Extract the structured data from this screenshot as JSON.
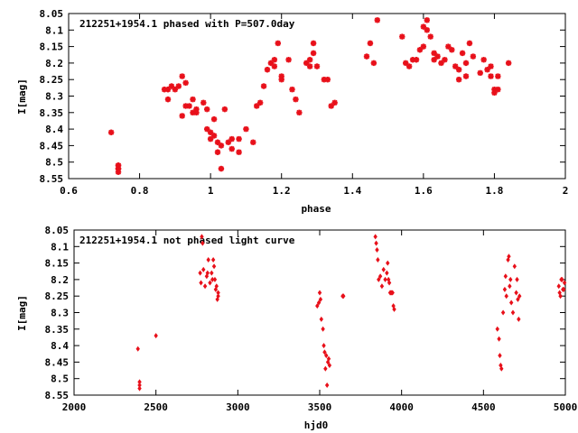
{
  "chart_data": [
    {
      "type": "scatter",
      "title": "212251+1954.1 phased with P=507.0day",
      "xlabel": "phase",
      "ylabel": "I[mag]",
      "xlim": [
        0.6,
        2.0
      ],
      "ylim": [
        8.55,
        8.05
      ],
      "y_inverted": true,
      "xticks": [
        "0.6",
        "0.8",
        "1",
        "1.2",
        "1.4",
        "1.6",
        "1.8",
        "2"
      ],
      "xtick_values": [
        0.6,
        0.8,
        1.0,
        1.2,
        1.4,
        1.6,
        1.8,
        2.0
      ],
      "yticks": [
        "8.05",
        "8.1",
        "8.15",
        "8.2",
        "8.25",
        "8.3",
        "8.35",
        "8.4",
        "8.45",
        "8.5",
        "8.55"
      ],
      "ytick_values": [
        8.05,
        8.1,
        8.15,
        8.2,
        8.25,
        8.3,
        8.35,
        8.4,
        8.45,
        8.5,
        8.55
      ],
      "marker": "star",
      "color": "#e8101a",
      "x": [
        0.72,
        0.74,
        0.74,
        0.74,
        0.74,
        0.74,
        0.87,
        0.88,
        0.88,
        0.89,
        0.9,
        0.91,
        0.92,
        0.92,
        0.93,
        0.93,
        0.94,
        0.95,
        0.95,
        0.96,
        0.96,
        0.98,
        0.99,
        0.99,
        1.0,
        1.0,
        1.01,
        1.01,
        1.02,
        1.02,
        1.03,
        1.03,
        1.04,
        1.05,
        1.06,
        1.06,
        1.08,
        1.08,
        1.1,
        1.12,
        1.13,
        1.14,
        1.15,
        1.16,
        1.17,
        1.18,
        1.18,
        1.19,
        1.2,
        1.2,
        1.22,
        1.23,
        1.24,
        1.25,
        1.27,
        1.28,
        1.28,
        1.29,
        1.29,
        1.3,
        1.32,
        1.33,
        1.34,
        1.35,
        1.44,
        1.45,
        1.46,
        1.47,
        1.54,
        1.55,
        1.56,
        1.57,
        1.58,
        1.59,
        1.6,
        1.6,
        1.61,
        1.61,
        1.62,
        1.63,
        1.63,
        1.64,
        1.65,
        1.66,
        1.67,
        1.68,
        1.69,
        1.7,
        1.7,
        1.71,
        1.72,
        1.72,
        1.73,
        1.74,
        1.76,
        1.77,
        1.78,
        1.79,
        1.79,
        1.8,
        1.8,
        1.81,
        1.81,
        1.84
      ],
      "y": [
        8.41,
        8.51,
        8.52,
        8.52,
        8.53,
        8.51,
        8.28,
        8.28,
        8.31,
        8.27,
        8.28,
        8.27,
        8.24,
        8.36,
        8.26,
        8.33,
        8.33,
        8.35,
        8.31,
        8.35,
        8.34,
        8.32,
        8.4,
        8.34,
        8.41,
        8.43,
        8.42,
        8.37,
        8.44,
        8.47,
        8.52,
        8.45,
        8.34,
        8.44,
        8.46,
        8.43,
        8.47,
        8.43,
        8.4,
        8.44,
        8.33,
        8.32,
        8.27,
        8.22,
        8.2,
        8.21,
        8.19,
        8.14,
        8.24,
        8.25,
        8.19,
        8.28,
        8.31,
        8.35,
        8.2,
        8.21,
        8.19,
        8.17,
        8.14,
        8.21,
        8.25,
        8.25,
        8.33,
        8.32,
        8.18,
        8.14,
        8.2,
        8.07,
        8.12,
        8.2,
        8.21,
        8.19,
        8.19,
        8.16,
        8.15,
        8.09,
        8.07,
        8.1,
        8.12,
        8.17,
        8.19,
        8.18,
        8.2,
        8.19,
        8.15,
        8.16,
        8.21,
        8.22,
        8.25,
        8.17,
        8.2,
        8.24,
        8.14,
        8.18,
        8.23,
        8.19,
        8.22,
        8.21,
        8.24,
        8.28,
        8.29,
        8.24,
        8.28,
        8.2
      ]
    },
    {
      "type": "scatter",
      "title": "212251+1954.1 not phased light curve",
      "xlabel": "hjd0",
      "ylabel": "I[mag]",
      "xlim": [
        2000,
        5000
      ],
      "ylim": [
        8.55,
        8.05
      ],
      "y_inverted": true,
      "xticks": [
        "2000",
        "2500",
        "3000",
        "3500",
        "4000",
        "4500",
        "5000"
      ],
      "xtick_values": [
        2000,
        2500,
        3000,
        3500,
        4000,
        4500,
        5000
      ],
      "yticks": [
        "8.05",
        "8.1",
        "8.15",
        "8.2",
        "8.25",
        "8.3",
        "8.35",
        "8.4",
        "8.45",
        "8.5",
        "8.55"
      ],
      "ytick_values": [
        8.05,
        8.1,
        8.15,
        8.2,
        8.25,
        8.3,
        8.35,
        8.4,
        8.45,
        8.5,
        8.55
      ],
      "marker": "diamond",
      "color": "#e8101a",
      "x": [
        2390,
        2400,
        2400,
        2400,
        2500,
        2770,
        2775,
        2780,
        2785,
        2790,
        2800,
        2810,
        2815,
        2820,
        2830,
        2840,
        2845,
        2850,
        2855,
        2860,
        2865,
        2870,
        2875,
        2880,
        2880,
        3485,
        3495,
        3500,
        3505,
        3510,
        3520,
        3525,
        3530,
        3535,
        3540,
        3545,
        3550,
        3555,
        3560,
        3640,
        3645,
        3840,
        3845,
        3850,
        3855,
        3860,
        3870,
        3880,
        3890,
        3900,
        3910,
        3915,
        3920,
        3925,
        3930,
        3935,
        3940,
        3945,
        3950,
        3955,
        4585,
        4595,
        4600,
        4605,
        4610,
        4620,
        4630,
        4635,
        4640,
        4650,
        4655,
        4660,
        4665,
        4670,
        4680,
        4690,
        4700,
        4705,
        4710,
        4715,
        4720,
        4960,
        4965,
        4970,
        4975,
        4980,
        4985,
        4990,
        4995
      ],
      "y": [
        8.41,
        8.51,
        8.53,
        8.52,
        8.37,
        8.18,
        8.21,
        8.07,
        8.09,
        8.17,
        8.22,
        8.19,
        8.18,
        8.14,
        8.21,
        8.18,
        8.2,
        8.14,
        8.16,
        8.2,
        8.23,
        8.22,
        8.26,
        8.24,
        8.25,
        8.28,
        8.27,
        8.24,
        8.26,
        8.32,
        8.35,
        8.4,
        8.42,
        8.47,
        8.43,
        8.52,
        8.45,
        8.44,
        8.46,
        8.25,
        8.25,
        8.07,
        8.09,
        8.11,
        8.14,
        8.2,
        8.19,
        8.22,
        8.17,
        8.2,
        8.18,
        8.15,
        8.2,
        8.21,
        8.24,
        8.24,
        8.24,
        8.24,
        8.28,
        8.29,
        8.35,
        8.38,
        8.43,
        8.46,
        8.47,
        8.3,
        8.23,
        8.19,
        8.25,
        8.14,
        8.13,
        8.22,
        8.2,
        8.27,
        8.3,
        8.16,
        8.24,
        8.2,
        8.26,
        8.32,
        8.25,
        8.22,
        8.24,
        8.25,
        8.2,
        8.2,
        8.23,
        8.23,
        8.21
      ]
    }
  ]
}
